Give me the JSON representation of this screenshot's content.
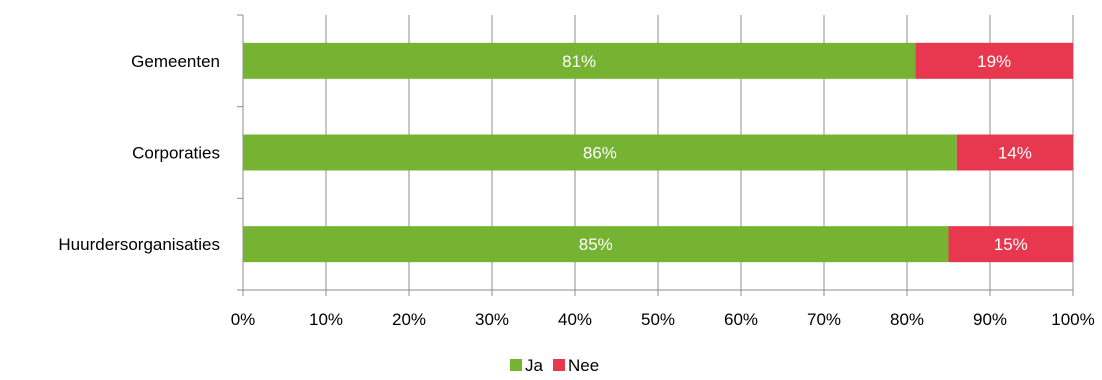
{
  "chart_data": {
    "type": "bar",
    "orientation": "horizontal",
    "stacked": true,
    "percent_stacked": true,
    "categories": [
      "Gemeenten",
      "Corporaties",
      "Huurdersorganisaties"
    ],
    "series": [
      {
        "name": "Ja",
        "values": [
          81,
          86,
          85
        ],
        "labels": [
          "81%",
          "86%",
          "85%"
        ],
        "color": "#77b332"
      },
      {
        "name": "Nee",
        "values": [
          19,
          14,
          15
        ],
        "labels": [
          "19%",
          "14%",
          "15%"
        ],
        "color": "#e8384f"
      }
    ],
    "xlim": [
      0,
      100
    ],
    "xticks": [
      "0%",
      "10%",
      "20%",
      "30%",
      "40%",
      "50%",
      "60%",
      "70%",
      "80%",
      "90%",
      "100%"
    ],
    "grid": "vertical",
    "legend_position": "bottom"
  }
}
